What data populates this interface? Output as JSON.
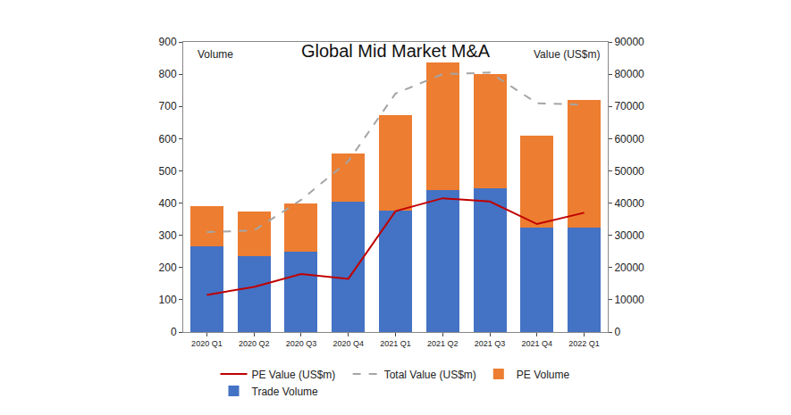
{
  "chart_data": {
    "type": "bar",
    "title": "Global Mid Market M&A",
    "ylabel": "Volume",
    "y2label": "Value (US$m)",
    "categories": [
      "2020 Q1",
      "2020 Q2",
      "2020 Q3",
      "2020 Q4",
      "2021 Q1",
      "2021 Q2",
      "2021 Q3",
      "2021 Q4",
      "2022 Q1"
    ],
    "series": [
      {
        "name": "Trade Volume",
        "type": "bar",
        "color": "#4472c4",
        "values": [
          265,
          235,
          250,
          405,
          378,
          440,
          445,
          323,
          323
        ]
      },
      {
        "name": "PE Volume",
        "type": "bar",
        "color": "#ed7d31",
        "values": [
          125,
          138,
          150,
          148,
          295,
          395,
          355,
          285,
          397
        ]
      },
      {
        "name": "Total Value (US$m)",
        "type": "line",
        "axis": "y2",
        "line_style": "dash",
        "color": "#a5a5a5",
        "values": [
          31000,
          31500,
          41000,
          53000,
          74000,
          80000,
          80500,
          71000,
          70500
        ]
      },
      {
        "name": "PE Value (US$m)",
        "type": "line",
        "axis": "y2",
        "line_style": "solid",
        "color": "#c00000",
        "values": [
          11500,
          14000,
          18000,
          16500,
          37500,
          41500,
          40500,
          33500,
          37000
        ]
      }
    ],
    "ylim": [
      0,
      900
    ],
    "yticks": [
      0,
      100,
      200,
      300,
      400,
      500,
      600,
      700,
      800,
      900
    ],
    "y2lim": [
      0,
      90000
    ],
    "y2ticks": [
      0,
      10000,
      20000,
      30000,
      40000,
      50000,
      60000,
      70000,
      80000,
      90000
    ],
    "stacked": true,
    "grid": false,
    "legend": "bottom"
  }
}
